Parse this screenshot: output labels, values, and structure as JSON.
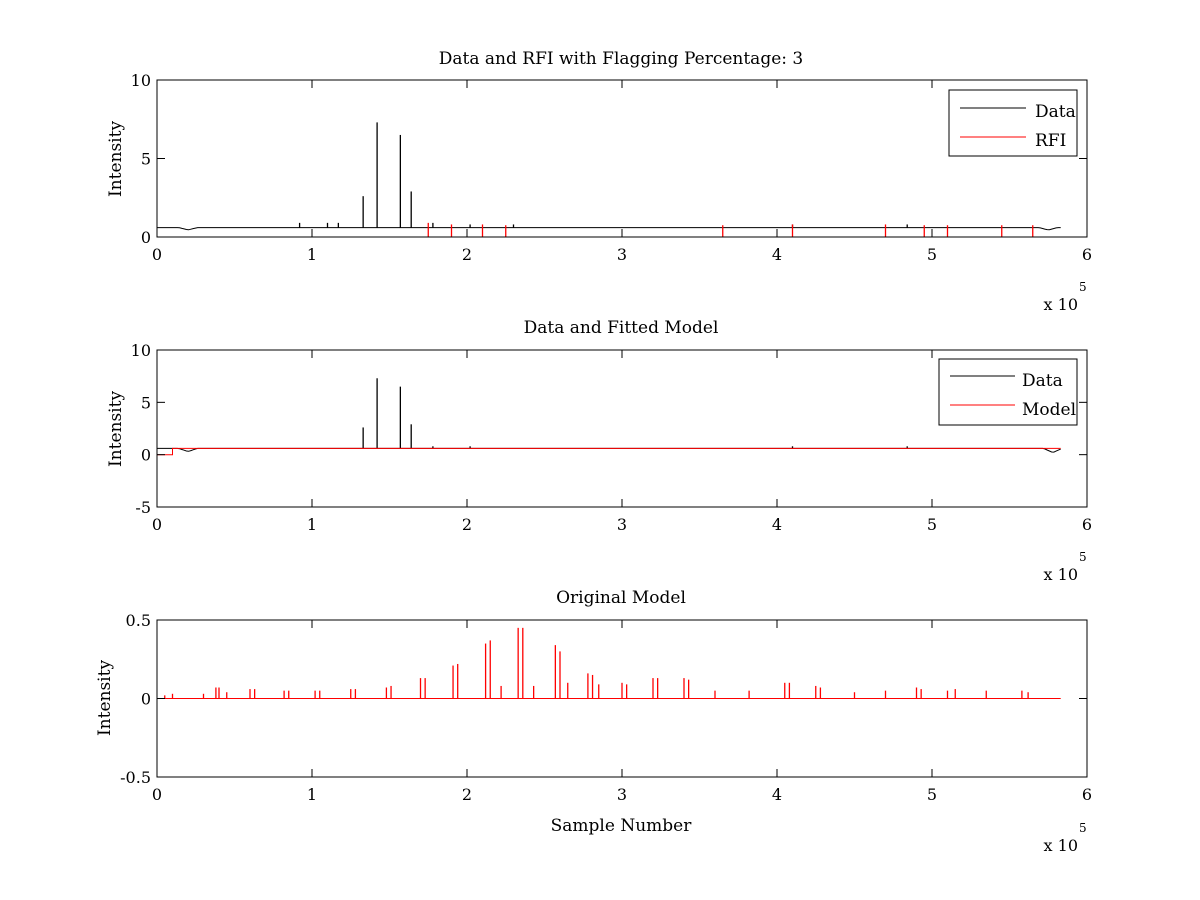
{
  "figure": {
    "background": "#ffffff",
    "axes_color": "#000000",
    "data_color": "#000000",
    "rfi_color": "#ff0000",
    "exponent_label": "x 10",
    "exponent_power": "5"
  },
  "chart_data": [
    {
      "type": "line",
      "title": "Data and RFI with Flagging Percentage: 3",
      "xlabel": "",
      "ylabel": "Intensity",
      "xlim": [
        0,
        6
      ],
      "ylim": [
        0,
        10
      ],
      "x_scale_factor": "x 10^5",
      "xticks": [
        "0",
        "1",
        "2",
        "3",
        "4",
        "5",
        "6"
      ],
      "yticks": [
        "0",
        "5",
        "10"
      ],
      "ytick_values": [
        0,
        5,
        10
      ],
      "grid": false,
      "legend_position": "top-right",
      "legend": [
        {
          "label": "Data",
          "color": "#000000"
        },
        {
          "label": "RFI",
          "color": "#ff0000"
        }
      ],
      "series": [
        {
          "name": "Data",
          "color": "#000000",
          "baseline": 0.6,
          "x_range": [
            0,
            5.83
          ],
          "spikes": [
            [
              0.92,
              0.9
            ],
            [
              1.1,
              0.9
            ],
            [
              1.17,
              0.9
            ],
            [
              1.33,
              2.6
            ],
            [
              1.42,
              7.3
            ],
            [
              1.57,
              6.5
            ],
            [
              1.64,
              2.9
            ],
            [
              1.78,
              0.9
            ],
            [
              2.02,
              0.8
            ],
            [
              2.3,
              0.8
            ],
            [
              4.1,
              0.8
            ],
            [
              4.84,
              0.8
            ]
          ],
          "dips": [
            [
              0.2,
              0.45
            ],
            [
              5.75,
              0.45
            ]
          ]
        },
        {
          "name": "RFI",
          "color": "#ff0000",
          "spikes": [
            [
              1.75,
              0.9
            ],
            [
              1.9,
              0.8
            ],
            [
              2.1,
              0.8
            ],
            [
              2.25,
              0.75
            ],
            [
              3.65,
              0.75
            ],
            [
              4.1,
              0.8
            ],
            [
              4.7,
              0.8
            ],
            [
              4.95,
              0.75
            ],
            [
              5.1,
              0.75
            ],
            [
              5.45,
              0.75
            ],
            [
              5.65,
              0.75
            ]
          ]
        }
      ]
    },
    {
      "type": "line",
      "title": "Data and Fitted Model",
      "xlabel": "",
      "ylabel": "Intensity",
      "xlim": [
        0,
        6
      ],
      "ylim": [
        -5,
        10
      ],
      "x_scale_factor": "x 10^5",
      "xticks": [
        "0",
        "1",
        "2",
        "3",
        "4",
        "5",
        "6"
      ],
      "yticks": [
        "-5",
        "0",
        "5",
        "10"
      ],
      "ytick_values": [
        -5,
        0,
        5,
        10
      ],
      "grid": false,
      "legend_position": "top-right",
      "legend": [
        {
          "label": "Data",
          "color": "#000000"
        },
        {
          "label": "Model",
          "color": "#ff0000"
        }
      ],
      "series": [
        {
          "name": "Data",
          "color": "#000000",
          "baseline": 0.6,
          "x_range": [
            0,
            5.83
          ],
          "spikes": [
            [
              1.33,
              2.6
            ],
            [
              1.42,
              7.3
            ],
            [
              1.57,
              6.5
            ],
            [
              1.64,
              2.9
            ],
            [
              1.78,
              0.8
            ],
            [
              2.02,
              0.8
            ],
            [
              4.1,
              0.8
            ],
            [
              4.84,
              0.8
            ]
          ],
          "dips": [
            [
              0.2,
              0.3
            ],
            [
              5.78,
              0.2
            ]
          ]
        },
        {
          "name": "Model",
          "color": "#ff0000",
          "baseline": 0.6,
          "x_range": [
            0,
            5.83
          ],
          "initial_step": [
            0,
            0.1,
            0
          ]
        }
      ]
    },
    {
      "type": "line",
      "title": "Original Model",
      "xlabel": "Sample Number",
      "ylabel": "Intensity",
      "xlim": [
        0,
        6
      ],
      "ylim": [
        -0.5,
        0.5
      ],
      "x_scale_factor": "x 10^5",
      "xticks": [
        "0",
        "1",
        "2",
        "3",
        "4",
        "5",
        "6"
      ],
      "yticks": [
        "-0.5",
        "0",
        "0.5"
      ],
      "ytick_values": [
        -0.5,
        0,
        0.5
      ],
      "grid": false,
      "legend_position": "none",
      "series": [
        {
          "name": "",
          "color": "#ff0000",
          "baseline": 0.0,
          "x_range": [
            0,
            5.83
          ],
          "spikes": [
            [
              0.05,
              0.02
            ],
            [
              0.1,
              0.03
            ],
            [
              0.3,
              0.03
            ],
            [
              0.38,
              0.07
            ],
            [
              0.4,
              0.07
            ],
            [
              0.45,
              0.04
            ],
            [
              0.6,
              0.06
            ],
            [
              0.63,
              0.06
            ],
            [
              0.82,
              0.05
            ],
            [
              0.85,
              0.05
            ],
            [
              1.02,
              0.05
            ],
            [
              1.05,
              0.05
            ],
            [
              1.25,
              0.06
            ],
            [
              1.28,
              0.06
            ],
            [
              1.48,
              0.07
            ],
            [
              1.51,
              0.08
            ],
            [
              1.7,
              0.13
            ],
            [
              1.73,
              0.13
            ],
            [
              1.91,
              0.21
            ],
            [
              1.94,
              0.22
            ],
            [
              2.12,
              0.35
            ],
            [
              2.15,
              0.37
            ],
            [
              2.22,
              0.08
            ],
            [
              2.33,
              0.45
            ],
            [
              2.36,
              0.45
            ],
            [
              2.43,
              0.08
            ],
            [
              2.57,
              0.34
            ],
            [
              2.6,
              0.3
            ],
            [
              2.65,
              0.1
            ],
            [
              2.78,
              0.16
            ],
            [
              2.81,
              0.15
            ],
            [
              2.85,
              0.09
            ],
            [
              3.0,
              0.1
            ],
            [
              3.03,
              0.09
            ],
            [
              3.2,
              0.13
            ],
            [
              3.23,
              0.13
            ],
            [
              3.4,
              0.13
            ],
            [
              3.43,
              0.12
            ],
            [
              3.6,
              0.05
            ],
            [
              3.82,
              0.05
            ],
            [
              4.05,
              0.1
            ],
            [
              4.08,
              0.1
            ],
            [
              4.25,
              0.08
            ],
            [
              4.28,
              0.07
            ],
            [
              4.5,
              0.04
            ],
            [
              4.7,
              0.05
            ],
            [
              4.9,
              0.07
            ],
            [
              4.93,
              0.06
            ],
            [
              5.1,
              0.05
            ],
            [
              5.15,
              0.06
            ],
            [
              5.35,
              0.05
            ],
            [
              5.58,
              0.05
            ],
            [
              5.62,
              0.04
            ]
          ]
        }
      ]
    }
  ]
}
